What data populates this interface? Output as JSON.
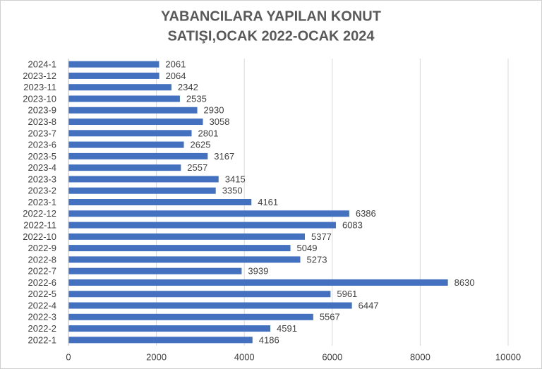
{
  "chart_data": {
    "type": "barh",
    "title": [
      "YABANCILARA YAPILAN KONUT",
      "SATIŞI,OCAK 2022-OCAK 2024"
    ],
    "categories": [
      "2024-1",
      "2023-12",
      "2023-11",
      "2023-10",
      "2023-9",
      "2023-8",
      "2023-7",
      "2023-6",
      "2023-5",
      "2023-4",
      "2023-3",
      "2023-2",
      "2023-1",
      "2022-12",
      "2022-11",
      "2022-10",
      "2022-9",
      "2022-8",
      "2022-7",
      "2022-6",
      "2022-5",
      "2022-4",
      "2022-3",
      "2022-2",
      "2022-1"
    ],
    "values": [
      2061,
      2064,
      2342,
      2535,
      2930,
      3058,
      2801,
      2625,
      3167,
      2557,
      3415,
      3350,
      4161,
      6386,
      6083,
      5377,
      5049,
      5273,
      3939,
      8630,
      5961,
      6447,
      5567,
      4591,
      4186
    ],
    "color": "#4470c0",
    "xlim": [
      0,
      10000
    ],
    "xticks": [
      0,
      2000,
      4000,
      6000,
      8000,
      10000
    ],
    "grid": true
  }
}
